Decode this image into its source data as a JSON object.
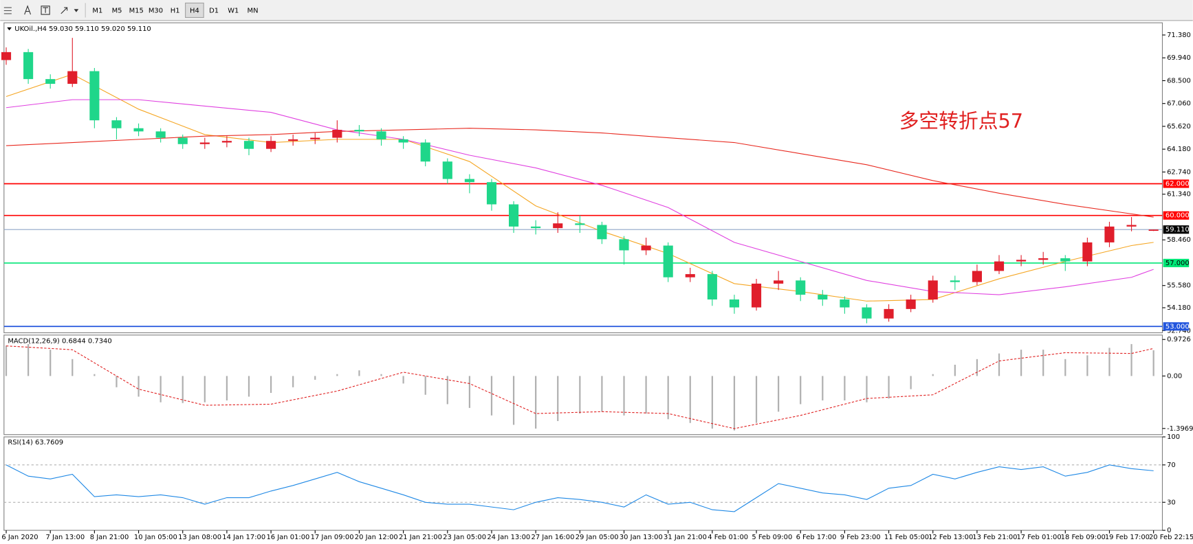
{
  "toolbar": {
    "timeframes": [
      "M1",
      "M5",
      "M15",
      "M30",
      "H1",
      "H4",
      "D1",
      "W1",
      "MN"
    ],
    "active": 5
  },
  "chart_data": [
    {
      "type": "candlestick",
      "title": "UKOil.,H4  59.030 59.110 59.020 59.110",
      "annotation": "多空转折点57",
      "up_color": "#e01e2b",
      "down_color": "#1fd68a",
      "xlim": [
        -0.1,
        52.4
      ],
      "ylim": [
        52.6,
        72.15
      ],
      "yticks": [
        {
          "value": 71.38,
          "label": "71.380"
        },
        {
          "value": 69.94,
          "label": "69.940"
        },
        {
          "value": 68.5,
          "label": "68.500"
        },
        {
          "value": 67.06,
          "label": "67.060"
        },
        {
          "value": 65.62,
          "label": "65.620"
        },
        {
          "value": 64.18,
          "label": "64.180"
        },
        {
          "value": 62.74,
          "label": "62.740"
        },
        {
          "value": 61.34,
          "label": "61.340"
        },
        {
          "value": 58.46,
          "label": "58.460"
        },
        {
          "value": 55.58,
          "label": "55.580"
        },
        {
          "value": 54.18,
          "label": "54.180"
        },
        {
          "value": 52.74,
          "label": "52.740"
        }
      ],
      "levels": [
        {
          "value": 62,
          "label": "62.000",
          "color": "#ff0000"
        },
        {
          "value": 60,
          "label": "60.000",
          "color": "#ff0000"
        },
        {
          "value": 59.11,
          "label": "59.110",
          "color": "#000000"
        },
        {
          "value": 57,
          "label": "57.000",
          "color": "#00e676"
        },
        {
          "value": 53,
          "label": "53.000",
          "color": "#2255dd"
        }
      ],
      "open": [
        69.8,
        70.3,
        68.6,
        68.3,
        69.1,
        66.0,
        65.5,
        65.3,
        64.9,
        64.5,
        64.6,
        64.7,
        64.2,
        64.7,
        64.8,
        64.9,
        65.4,
        65.3,
        64.8,
        64.6,
        63.4,
        62.3,
        62.1,
        60.7,
        59.3,
        59.2,
        59.5,
        59.4,
        58.5,
        57.8,
        58.1,
        56.1,
        56.3,
        54.7,
        54.2,
        55.7,
        55.9,
        55.0,
        54.7,
        54.2,
        53.5,
        54.1,
        54.7,
        55.9,
        55.8,
        56.5,
        57.1,
        57.2,
        57.3,
        57.1,
        58.3,
        59.3,
        59.03
      ],
      "high": [
        70.6,
        70.5,
        68.9,
        71.2,
        69.3,
        66.2,
        65.8,
        65.5,
        65.1,
        64.9,
        65.0,
        64.9,
        65.0,
        65.1,
        65.2,
        66.0,
        65.7,
        65.5,
        65.0,
        64.8,
        63.6,
        62.6,
        62.3,
        60.9,
        59.7,
        60.2,
        60.0,
        59.6,
        58.7,
        58.6,
        58.3,
        56.7,
        56.5,
        55.0,
        56.0,
        56.5,
        56.1,
        55.3,
        54.9,
        54.4,
        54.4,
        55.0,
        56.2,
        56.2,
        56.9,
        57.5,
        57.5,
        57.7,
        57.5,
        58.6,
        59.6,
        59.9,
        59.11
      ],
      "low": [
        69.5,
        68.3,
        68.0,
        68.1,
        65.5,
        64.8,
        65.0,
        64.6,
        64.2,
        64.2,
        64.3,
        63.8,
        64.0,
        64.4,
        64.5,
        64.6,
        65.0,
        64.4,
        64.2,
        63.1,
        62.0,
        61.4,
        60.3,
        58.9,
        58.8,
        58.9,
        58.9,
        58.2,
        56.9,
        57.5,
        55.8,
        55.8,
        54.3,
        53.8,
        54.0,
        55.3,
        54.6,
        54.3,
        53.8,
        53.2,
        53.3,
        53.9,
        54.5,
        55.3,
        55.6,
        56.3,
        56.8,
        56.9,
        56.5,
        56.8,
        58.0,
        59.0,
        59.02
      ],
      "close": [
        70.3,
        68.6,
        68.3,
        69.1,
        66.0,
        65.5,
        65.3,
        64.9,
        64.5,
        64.6,
        64.7,
        64.2,
        64.7,
        64.8,
        64.9,
        65.4,
        65.3,
        64.8,
        64.6,
        63.4,
        62.3,
        62.1,
        60.7,
        59.3,
        59.2,
        59.5,
        59.4,
        58.5,
        57.8,
        58.1,
        56.1,
        56.3,
        54.7,
        54.2,
        55.7,
        55.9,
        55.0,
        54.7,
        54.2,
        53.5,
        54.1,
        54.7,
        55.9,
        55.8,
        56.5,
        57.1,
        57.2,
        57.3,
        57.1,
        58.3,
        59.3,
        59.4,
        59.11
      ],
      "series": [
        {
          "color": "#f5a623",
          "x": [
            0,
            3,
            6,
            9,
            12,
            15,
            18,
            21,
            24,
            27,
            30,
            33,
            36,
            39,
            42,
            45,
            48,
            51,
            52
          ],
          "values": [
            67.5,
            68.9,
            66.7,
            65.1,
            64.6,
            64.8,
            64.8,
            63.4,
            60.6,
            59.0,
            57.6,
            55.7,
            55.2,
            54.6,
            54.7,
            56.0,
            57.1,
            58.1,
            58.3
          ]
        },
        {
          "color": "#e040e0",
          "x": [
            0,
            3,
            6,
            9,
            12,
            15,
            18,
            21,
            24,
            27,
            30,
            33,
            36,
            39,
            42,
            45,
            48,
            51,
            52
          ],
          "values": [
            66.8,
            67.3,
            67.3,
            66.9,
            66.5,
            65.4,
            64.8,
            63.8,
            63.0,
            61.9,
            60.5,
            58.3,
            57.1,
            55.9,
            55.2,
            55.0,
            55.5,
            56.1,
            56.6
          ]
        },
        {
          "color": "#e8281e",
          "x": [
            0,
            3,
            6,
            9,
            12,
            15,
            18,
            21,
            24,
            27,
            30,
            33,
            36,
            39,
            42,
            45,
            48,
            51,
            52
          ],
          "values": [
            64.4,
            64.6,
            64.8,
            65.0,
            65.1,
            65.3,
            65.4,
            65.5,
            65.4,
            65.2,
            64.9,
            64.6,
            63.9,
            63.2,
            62.2,
            61.4,
            60.7,
            60.1,
            59.9
          ]
        }
      ]
    },
    {
      "type": "bar",
      "title": "MACD(12,26,9) 0.6844 0.7340",
      "color": "#b0b0b0",
      "xlim": [
        -0.1,
        52.4
      ],
      "ylim": [
        -1.56,
        1.09
      ],
      "yticks": [
        0.9726,
        {
          "value": 0,
          "label": "0.00"
        },
        -1.3969
      ],
      "values": [
        0.81,
        0.85,
        0.7,
        0.45,
        0.05,
        -0.3,
        -0.55,
        -0.7,
        -0.72,
        -0.7,
        -0.65,
        -0.55,
        -0.45,
        -0.3,
        -0.1,
        0.05,
        0.15,
        0.05,
        -0.2,
        -0.5,
        -0.75,
        -0.85,
        -1.05,
        -1.3,
        -1.4,
        -1.2,
        -1.0,
        -0.95,
        -1.05,
        -1.0,
        -1.15,
        -1.25,
        -1.4,
        -1.45,
        -1.25,
        -0.95,
        -0.75,
        -0.65,
        -0.65,
        -0.7,
        -0.6,
        -0.35,
        0.05,
        0.3,
        0.45,
        0.6,
        0.7,
        0.7,
        0.45,
        0.55,
        0.75,
        0.85,
        0.6844
      ],
      "series": [
        {
          "color": "#e02020",
          "dashed": true,
          "x": [
            0,
            3,
            6,
            9,
            12,
            15,
            18,
            21,
            24,
            27,
            30,
            33,
            36,
            39,
            42,
            45,
            48,
            51,
            52
          ],
          "values": [
            0.8,
            0.7,
            -0.35,
            -0.78,
            -0.75,
            -0.4,
            0.1,
            -0.2,
            -1.0,
            -0.95,
            -1.0,
            -1.4,
            -1.05,
            -0.6,
            -0.5,
            0.4,
            0.62,
            0.6,
            0.734
          ]
        }
      ]
    },
    {
      "type": "line",
      "title": "RSI(14) 63.7609",
      "color": "#1e88e5",
      "xlim": [
        -0.1,
        52.4
      ],
      "ylim": [
        0,
        100
      ],
      "yticks": [
        100,
        70,
        30,
        0
      ],
      "levels": [
        70,
        30
      ],
      "values": [
        70,
        58,
        55,
        60,
        36,
        38,
        36,
        38,
        35,
        28,
        35,
        35,
        42,
        48,
        55,
        62,
        52,
        45,
        38,
        30,
        28,
        28,
        25,
        22,
        30,
        35,
        33,
        30,
        25,
        38,
        28,
        30,
        22,
        20,
        35,
        50,
        45,
        40,
        38,
        33,
        45,
        48,
        60,
        55,
        62,
        68,
        65,
        68,
        58,
        62,
        70,
        66,
        63.7609
      ],
      "xticks": [
        {
          "value": 0,
          "label": "6 Jan 2020"
        },
        {
          "value": 2,
          "label": "7 Jan 13:00"
        },
        {
          "value": 4,
          "label": "8 Jan 21:00"
        },
        {
          "value": 6,
          "label": "10 Jan 05:00"
        },
        {
          "value": 8,
          "label": "13 Jan 08:00"
        },
        {
          "value": 10,
          "label": "14 Jan 17:00"
        },
        {
          "value": 12,
          "label": "16 Jan 01:00"
        },
        {
          "value": 14,
          "label": "17 Jan 09:00"
        },
        {
          "value": 16,
          "label": "20 Jan 12:00"
        },
        {
          "value": 18,
          "label": "21 Jan 21:00"
        },
        {
          "value": 20,
          "label": "23 Jan 05:00"
        },
        {
          "value": 22,
          "label": "24 Jan 13:00"
        },
        {
          "value": 24,
          "label": "27 Jan 16:00"
        },
        {
          "value": 26,
          "label": "29 Jan 05:00"
        },
        {
          "value": 28,
          "label": "30 Jan 13:00"
        },
        {
          "value": 30,
          "label": "31 Jan 21:00"
        },
        {
          "value": 32,
          "label": "4 Feb 01:00"
        },
        {
          "value": 34,
          "label": "5 Feb 09:00"
        },
        {
          "value": 36,
          "label": "6 Feb 17:00"
        },
        {
          "value": 38,
          "label": "9 Feb 23:00"
        },
        {
          "value": 40,
          "label": "11 Feb 05:00"
        },
        {
          "value": 42,
          "label": "12 Feb 13:00"
        },
        {
          "value": 44,
          "label": "13 Feb 21:00"
        },
        {
          "value": 46,
          "label": "17 Feb 01:00"
        },
        {
          "value": 48,
          "label": "18 Feb 09:00"
        },
        {
          "value": 50,
          "label": "19 Feb 17:00"
        },
        {
          "value": 52,
          "label": "20 Feb 22:15"
        }
      ]
    }
  ]
}
